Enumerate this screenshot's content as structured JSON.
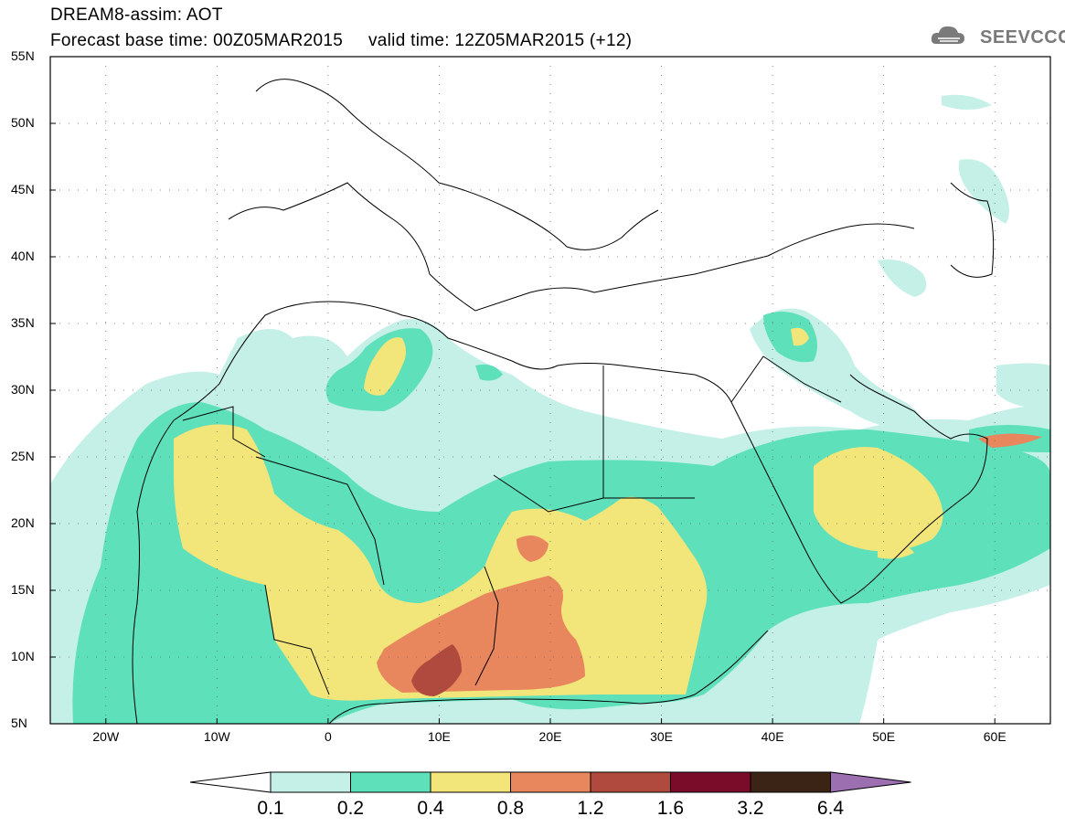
{
  "title_line1": "DREAM8-assim: AOT",
  "title_line2": "Forecast base time: 00Z05MAR2015     valid time: 12Z05MAR2015 (+12)",
  "logo_text": "SEEVCCC",
  "map": {
    "lon_range": [
      -25,
      65
    ],
    "lat_range": [
      5,
      55
    ],
    "lat_labels": [
      "55N",
      "50N",
      "45N",
      "40N",
      "35N",
      "30N",
      "25N",
      "20N",
      "15N",
      "10N",
      "5N"
    ],
    "lon_labels": [
      "20W",
      "10W",
      "0",
      "10E",
      "20E",
      "30E",
      "40E",
      "50E",
      "60E"
    ]
  },
  "colorbar": {
    "levels": [
      "0.1",
      "0.2",
      "0.4",
      "0.8",
      "1.2",
      "1.6",
      "3.2",
      "6.4"
    ],
    "colors": [
      "#ffffff",
      "#c5f0e8",
      "#5ee0bb",
      "#f2e57a",
      "#e8865e",
      "#b04a3e",
      "#7a0c2a",
      "#3b2415",
      "#9b6fb0"
    ]
  },
  "field_colors": {
    "c01": "#c5f0e8",
    "c02": "#5ee0bb",
    "c04": "#f2e57a",
    "c08": "#e8865e",
    "c12": "#b04a3e"
  }
}
